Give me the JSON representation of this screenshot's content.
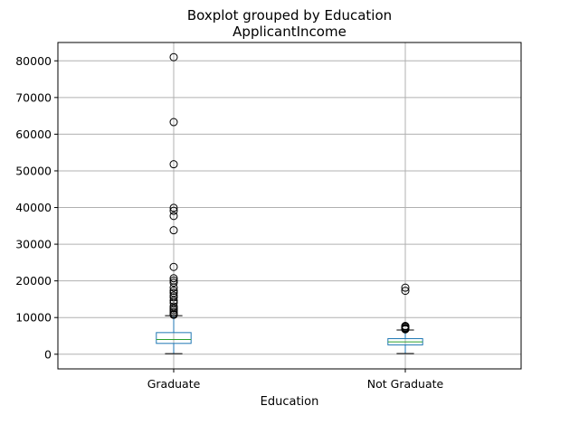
{
  "chart_data": {
    "type": "boxplot",
    "title": "Boxplot grouped by Education",
    "subtitle": "ApplicantIncome",
    "xlabel": "Education",
    "ylabel": "",
    "ylim": [
      -4000,
      85000
    ],
    "yticks": [
      0,
      10000,
      20000,
      30000,
      40000,
      50000,
      60000,
      70000,
      80000
    ],
    "ytick_labels": [
      "0",
      "10000",
      "20000",
      "30000",
      "40000",
      "50000",
      "60000",
      "70000",
      "80000"
    ],
    "grid": true,
    "colors": {
      "box": "#1f77b4",
      "median": "#2ca02c",
      "whisker": "#000000",
      "flier": "#000000",
      "grid": "#b0b0b0"
    },
    "categories": [
      "Graduate",
      "Not Graduate"
    ],
    "groups": [
      {
        "label": "Graduate",
        "whisker_low": 150,
        "q1": 2950,
        "median": 4000,
        "q3": 5900,
        "whisker_high": 10500,
        "fliers": [
          10750,
          11000,
          11500,
          12000,
          12500,
          13000,
          14000,
          14600,
          15500,
          16000,
          16700,
          17300,
          18200,
          19500,
          20100,
          20700,
          23800,
          33800,
          37700,
          39100,
          39900,
          51800,
          63300,
          81000
        ]
      },
      {
        "label": "Not Graduate",
        "whisker_low": 200,
        "q1": 2550,
        "median": 3350,
        "q3": 4250,
        "whisker_high": 6600,
        "fliers": [
          6800,
          7000,
          7200,
          7500,
          7700,
          17300,
          18150
        ]
      }
    ]
  }
}
